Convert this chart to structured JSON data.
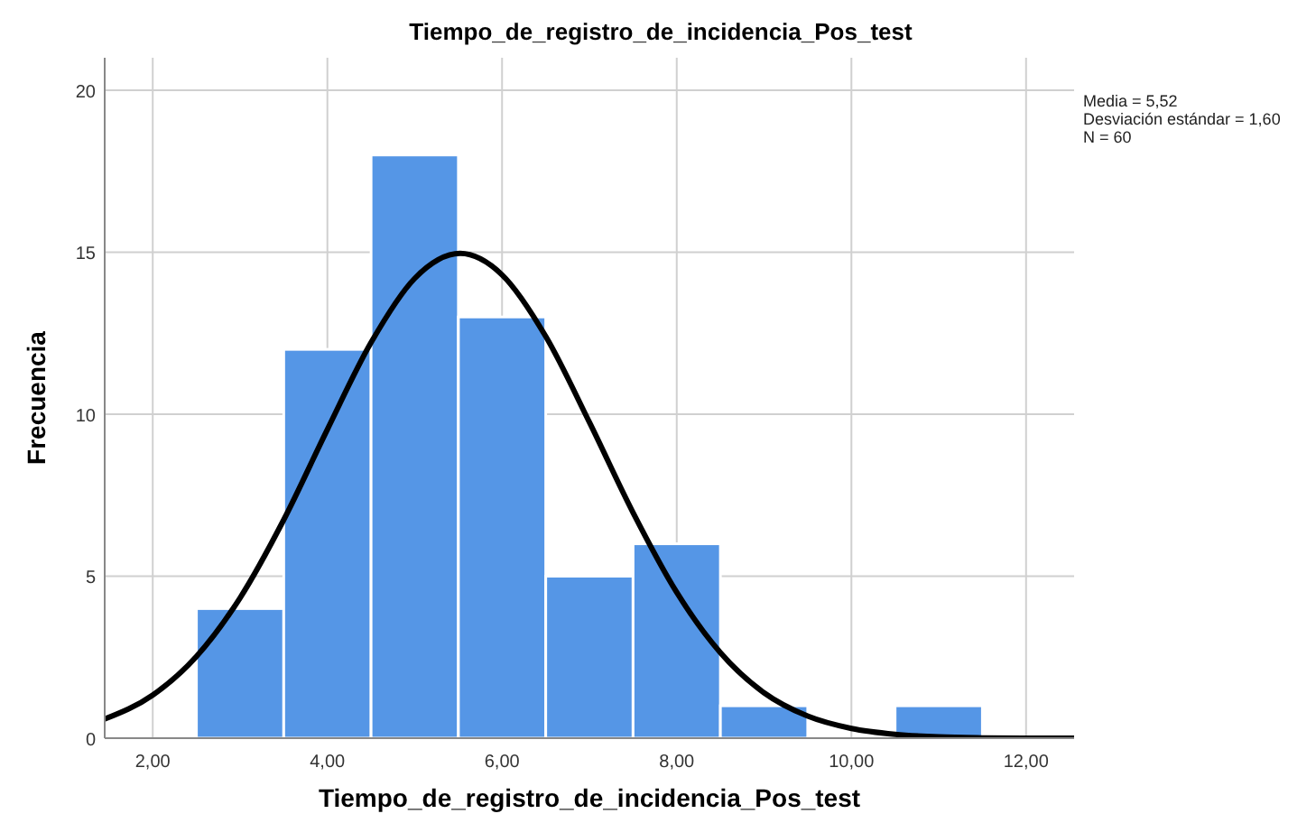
{
  "chart_data": {
    "type": "histogram",
    "title": "Tiempo_de_registro_de_incidencia_Pos_test",
    "xlabel": "Tiempo_de_registro_de_incidencia_Pos_test",
    "ylabel": "Frecuencia",
    "annotations": [
      "Media = 5,52",
      "Desviación estándar = 1,60",
      "N = 60"
    ],
    "bins": [
      2.5,
      3.5,
      4.5,
      5.5,
      6.5,
      7.5,
      8.5,
      9.5,
      10.5,
      11.5
    ],
    "values": [
      4,
      12,
      18,
      13,
      5,
      6,
      1,
      0,
      1
    ],
    "color": "#5596e6",
    "series": [
      {
        "type": "line",
        "color": "#000000",
        "x": [
          1.45,
          2,
          2.5,
          3,
          3.5,
          4,
          4.5,
          5,
          5.52,
          6,
          6.5,
          7,
          7.5,
          8,
          8.5,
          9,
          9.5,
          10,
          10.5,
          11,
          11.5,
          12,
          12.55
        ],
        "values": [
          0.59,
          1.33,
          2.52,
          4.33,
          6.74,
          9.53,
          12.21,
          14.19,
          14.96,
          14.3,
          12.4,
          9.75,
          6.96,
          4.5,
          2.64,
          1.4,
          0.68,
          0.3,
          0.12,
          0.04,
          0.01,
          0,
          0
        ]
      }
    ],
    "xlim": [
      1.45,
      12.55
    ],
    "ylim": [
      0,
      21
    ],
    "xticks": [
      {
        "value": 2,
        "label": "2,00"
      },
      {
        "value": 4,
        "label": "4,00"
      },
      {
        "value": 6,
        "label": "6,00"
      },
      {
        "value": 8,
        "label": "8,00"
      },
      {
        "value": 10,
        "label": "10,00"
      },
      {
        "value": 12,
        "label": "12,00"
      }
    ],
    "yticks": [
      0,
      5,
      10,
      15,
      20
    ],
    "grid": true
  }
}
